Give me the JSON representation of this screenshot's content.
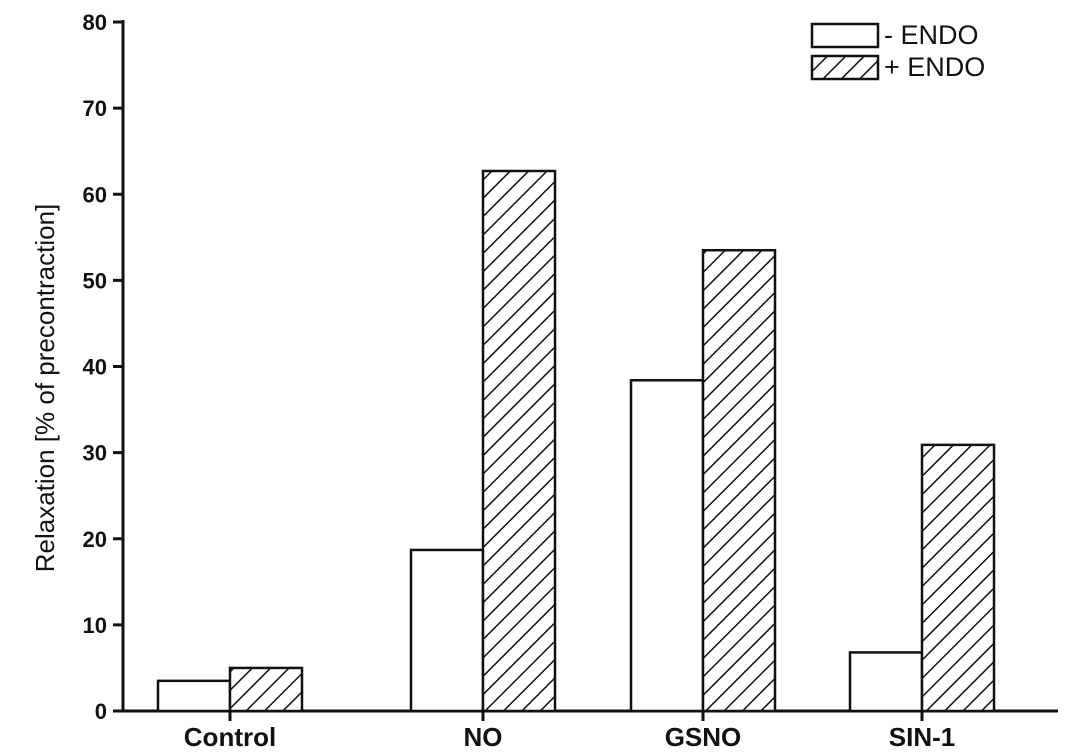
{
  "chart_data": {
    "type": "bar",
    "title": "",
    "xlabel": "",
    "ylabel": "Relaxation [% of precontraction]",
    "ylim": [
      0,
      80
    ],
    "yticks": [
      0,
      10,
      20,
      30,
      40,
      50,
      60,
      70,
      80
    ],
    "categories": [
      "Control",
      "NO",
      "GSNO",
      "SIN-1"
    ],
    "series": [
      {
        "name": "-  ENDO",
        "pattern": "none",
        "values": [
          3.5,
          18.7,
          38.4,
          6.8
        ]
      },
      {
        "name": "+ ENDO",
        "pattern": "hatched",
        "values": [
          5.0,
          62.7,
          53.5,
          30.9
        ]
      }
    ],
    "grid": false,
    "legend_position": "top-right",
    "colors": {
      "ink": "#111111",
      "background": "#ffffff"
    }
  }
}
